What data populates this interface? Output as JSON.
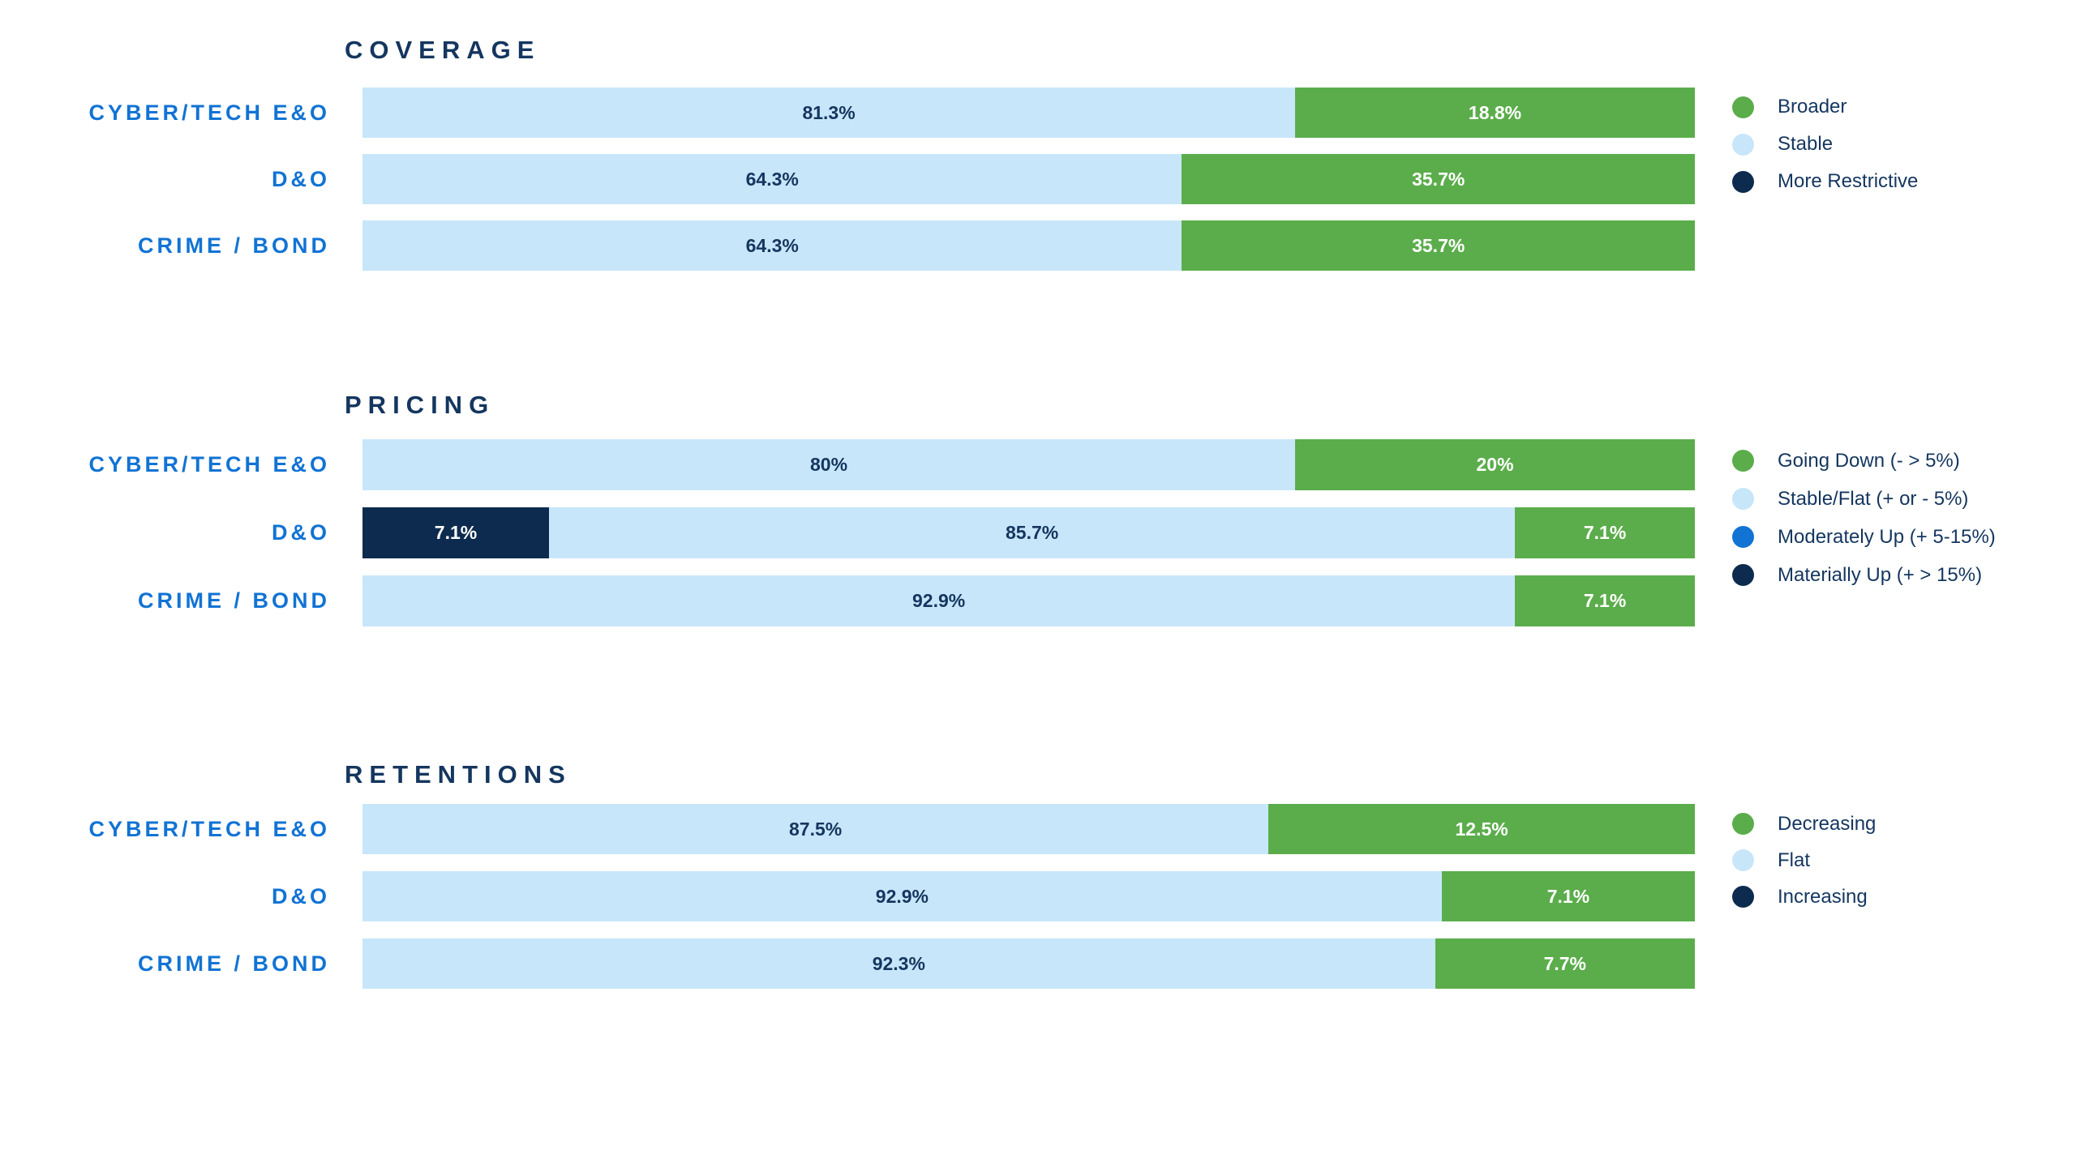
{
  "colors": {
    "green": "#5BAD4B",
    "light_blue": "#C8E6FA",
    "navy": "#0D2B4E",
    "moderate_blue": "#1173D4",
    "category_label_blue": "#1173D4",
    "text_navy": "#14365F",
    "background": "#FFFFFF"
  },
  "chart_data": {
    "type": "bar",
    "orientation": "horizontal_stacked_100pct",
    "unit": "percent",
    "grid": false,
    "legend_position": "right",
    "sections": [
      {
        "title": "COVERAGE",
        "legend": [
          {
            "label": "Broader",
            "color": "#5BAD4B"
          },
          {
            "label": "Stable",
            "color": "#C8E6FA"
          },
          {
            "label": "More Restrictive",
            "color": "#0D2B4E"
          }
        ],
        "rows": [
          {
            "category": "CYBER/TECH E&O",
            "segments": [
              {
                "name": "Stable",
                "value": 81.3,
                "label": "81.3%",
                "display_width": 70
              },
              {
                "name": "Broader",
                "value": 18.8,
                "label": "18.8%",
                "display_width": 30
              }
            ]
          },
          {
            "category": "D&O",
            "segments": [
              {
                "name": "Stable",
                "value": 64.3,
                "label": "64.3%",
                "display_width": 61.5
              },
              {
                "name": "Broader",
                "value": 35.7,
                "label": "35.7%",
                "display_width": 38.5
              }
            ]
          },
          {
            "category": "CRIME / BOND",
            "segments": [
              {
                "name": "Stable",
                "value": 64.3,
                "label": "64.3%",
                "display_width": 61.5
              },
              {
                "name": "Broader",
                "value": 35.7,
                "label": "35.7%",
                "display_width": 38.5
              }
            ]
          }
        ]
      },
      {
        "title": "PRICING",
        "legend": [
          {
            "label": "Going Down (- > 5%)",
            "color": "#5BAD4B"
          },
          {
            "label": "Stable/Flat (+ or - 5%)",
            "color": "#C8E6FA"
          },
          {
            "label": "Moderately Up (+ 5-15%)",
            "color": "#1173D4"
          },
          {
            "label": "Materially Up (+ > 15%)",
            "color": "#0D2B4E"
          }
        ],
        "rows": [
          {
            "category": "CYBER/TECH E&O",
            "segments": [
              {
                "name": "Stable/Flat",
                "value": 80,
                "label": "80%",
                "display_width": 70
              },
              {
                "name": "Going Down",
                "value": 20,
                "label": "20%",
                "display_width": 30
              }
            ]
          },
          {
            "category": "D&O",
            "segments": [
              {
                "name": "Materially Up",
                "value": 7.1,
                "label": "7.1%",
                "display_width": 14
              },
              {
                "name": "Stable/Flat",
                "value": 85.7,
                "label": "85.7%",
                "display_width": 72.5
              },
              {
                "name": "Going Down",
                "value": 7.1,
                "label": "7.1%",
                "display_width": 13.5
              }
            ]
          },
          {
            "category": "CRIME / BOND",
            "segments": [
              {
                "name": "Stable/Flat",
                "value": 92.9,
                "label": "92.9%",
                "display_width": 86.5
              },
              {
                "name": "Going Down",
                "value": 7.1,
                "label": "7.1%",
                "display_width": 13.5
              }
            ]
          }
        ]
      },
      {
        "title": "RETENTIONS",
        "legend": [
          {
            "label": "Decreasing",
            "color": "#5BAD4B"
          },
          {
            "label": "Flat",
            "color": "#C8E6FA"
          },
          {
            "label": "Increasing",
            "color": "#0D2B4E"
          }
        ],
        "rows": [
          {
            "category": "CYBER/TECH E&O",
            "segments": [
              {
                "name": "Flat",
                "value": 87.5,
                "label": "87.5%",
                "display_width": 68
              },
              {
                "name": "Decreasing",
                "value": 12.5,
                "label": "12.5%",
                "display_width": 32
              }
            ]
          },
          {
            "category": "D&O",
            "segments": [
              {
                "name": "Flat",
                "value": 92.9,
                "label": "92.9%",
                "display_width": 81
              },
              {
                "name": "Decreasing",
                "value": 7.1,
                "label": "7.1%",
                "display_width": 19
              }
            ]
          },
          {
            "category": "CRIME / BOND",
            "segments": [
              {
                "name": "Flat",
                "value": 92.3,
                "label": "92.3%",
                "display_width": 80.5
              },
              {
                "name": "Decreasing",
                "value": 7.7,
                "label": "7.7%",
                "display_width": 19.5
              }
            ]
          }
        ]
      }
    ]
  }
}
